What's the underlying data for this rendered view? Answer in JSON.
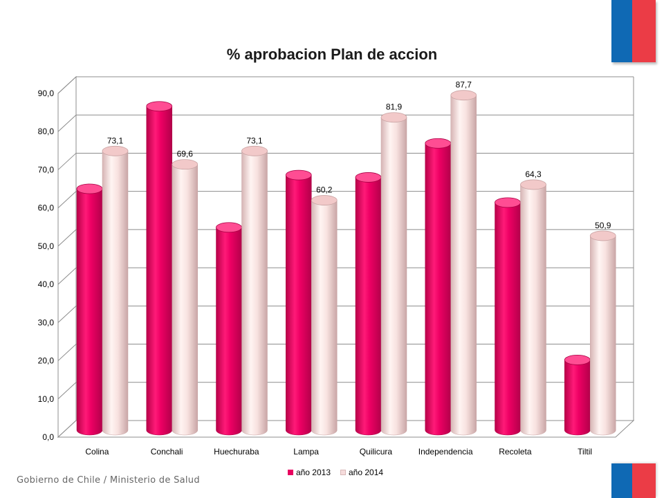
{
  "header": {
    "flag_colors": [
      "#0f69b4",
      "#eb3c46"
    ]
  },
  "footer": {
    "text": "Gobierno de Chile / Ministerio de Salud"
  },
  "chart_data": {
    "type": "bar",
    "title": "% aprobacion Plan de accion",
    "xlabel": "",
    "ylabel": "",
    "ylim": [
      0,
      90
    ],
    "yticks": [
      "0,0",
      "10,0",
      "20,0",
      "30,0",
      "40,0",
      "50,0",
      "60,0",
      "70,0",
      "80,0",
      "90,0"
    ],
    "grid": true,
    "legend_position": "bottom",
    "categories": [
      "Colina",
      "Conchali",
      "Huechuraba",
      "Lampa",
      "Quilicura",
      "Independencia",
      "Recoleta",
      "Tiltil"
    ],
    "series": [
      {
        "name": "año 2013",
        "color": "#e8005f",
        "values": [
          63.2,
          84.8,
          53.1,
          66.8,
          66.2,
          75.1,
          59.6,
          18.4
        ],
        "labels": [
          "",
          "",
          "",
          "",
          "",
          "",
          "",
          ""
        ]
      },
      {
        "name": "año 2014",
        "color": "#f6dcdc",
        "values": [
          73.1,
          69.6,
          73.1,
          60.2,
          81.9,
          87.7,
          64.3,
          50.9
        ],
        "labels": [
          "73,1",
          "69,6",
          "73,1",
          "60,2",
          "81,9",
          "87,7",
          "64,3",
          "50,9"
        ]
      }
    ]
  }
}
